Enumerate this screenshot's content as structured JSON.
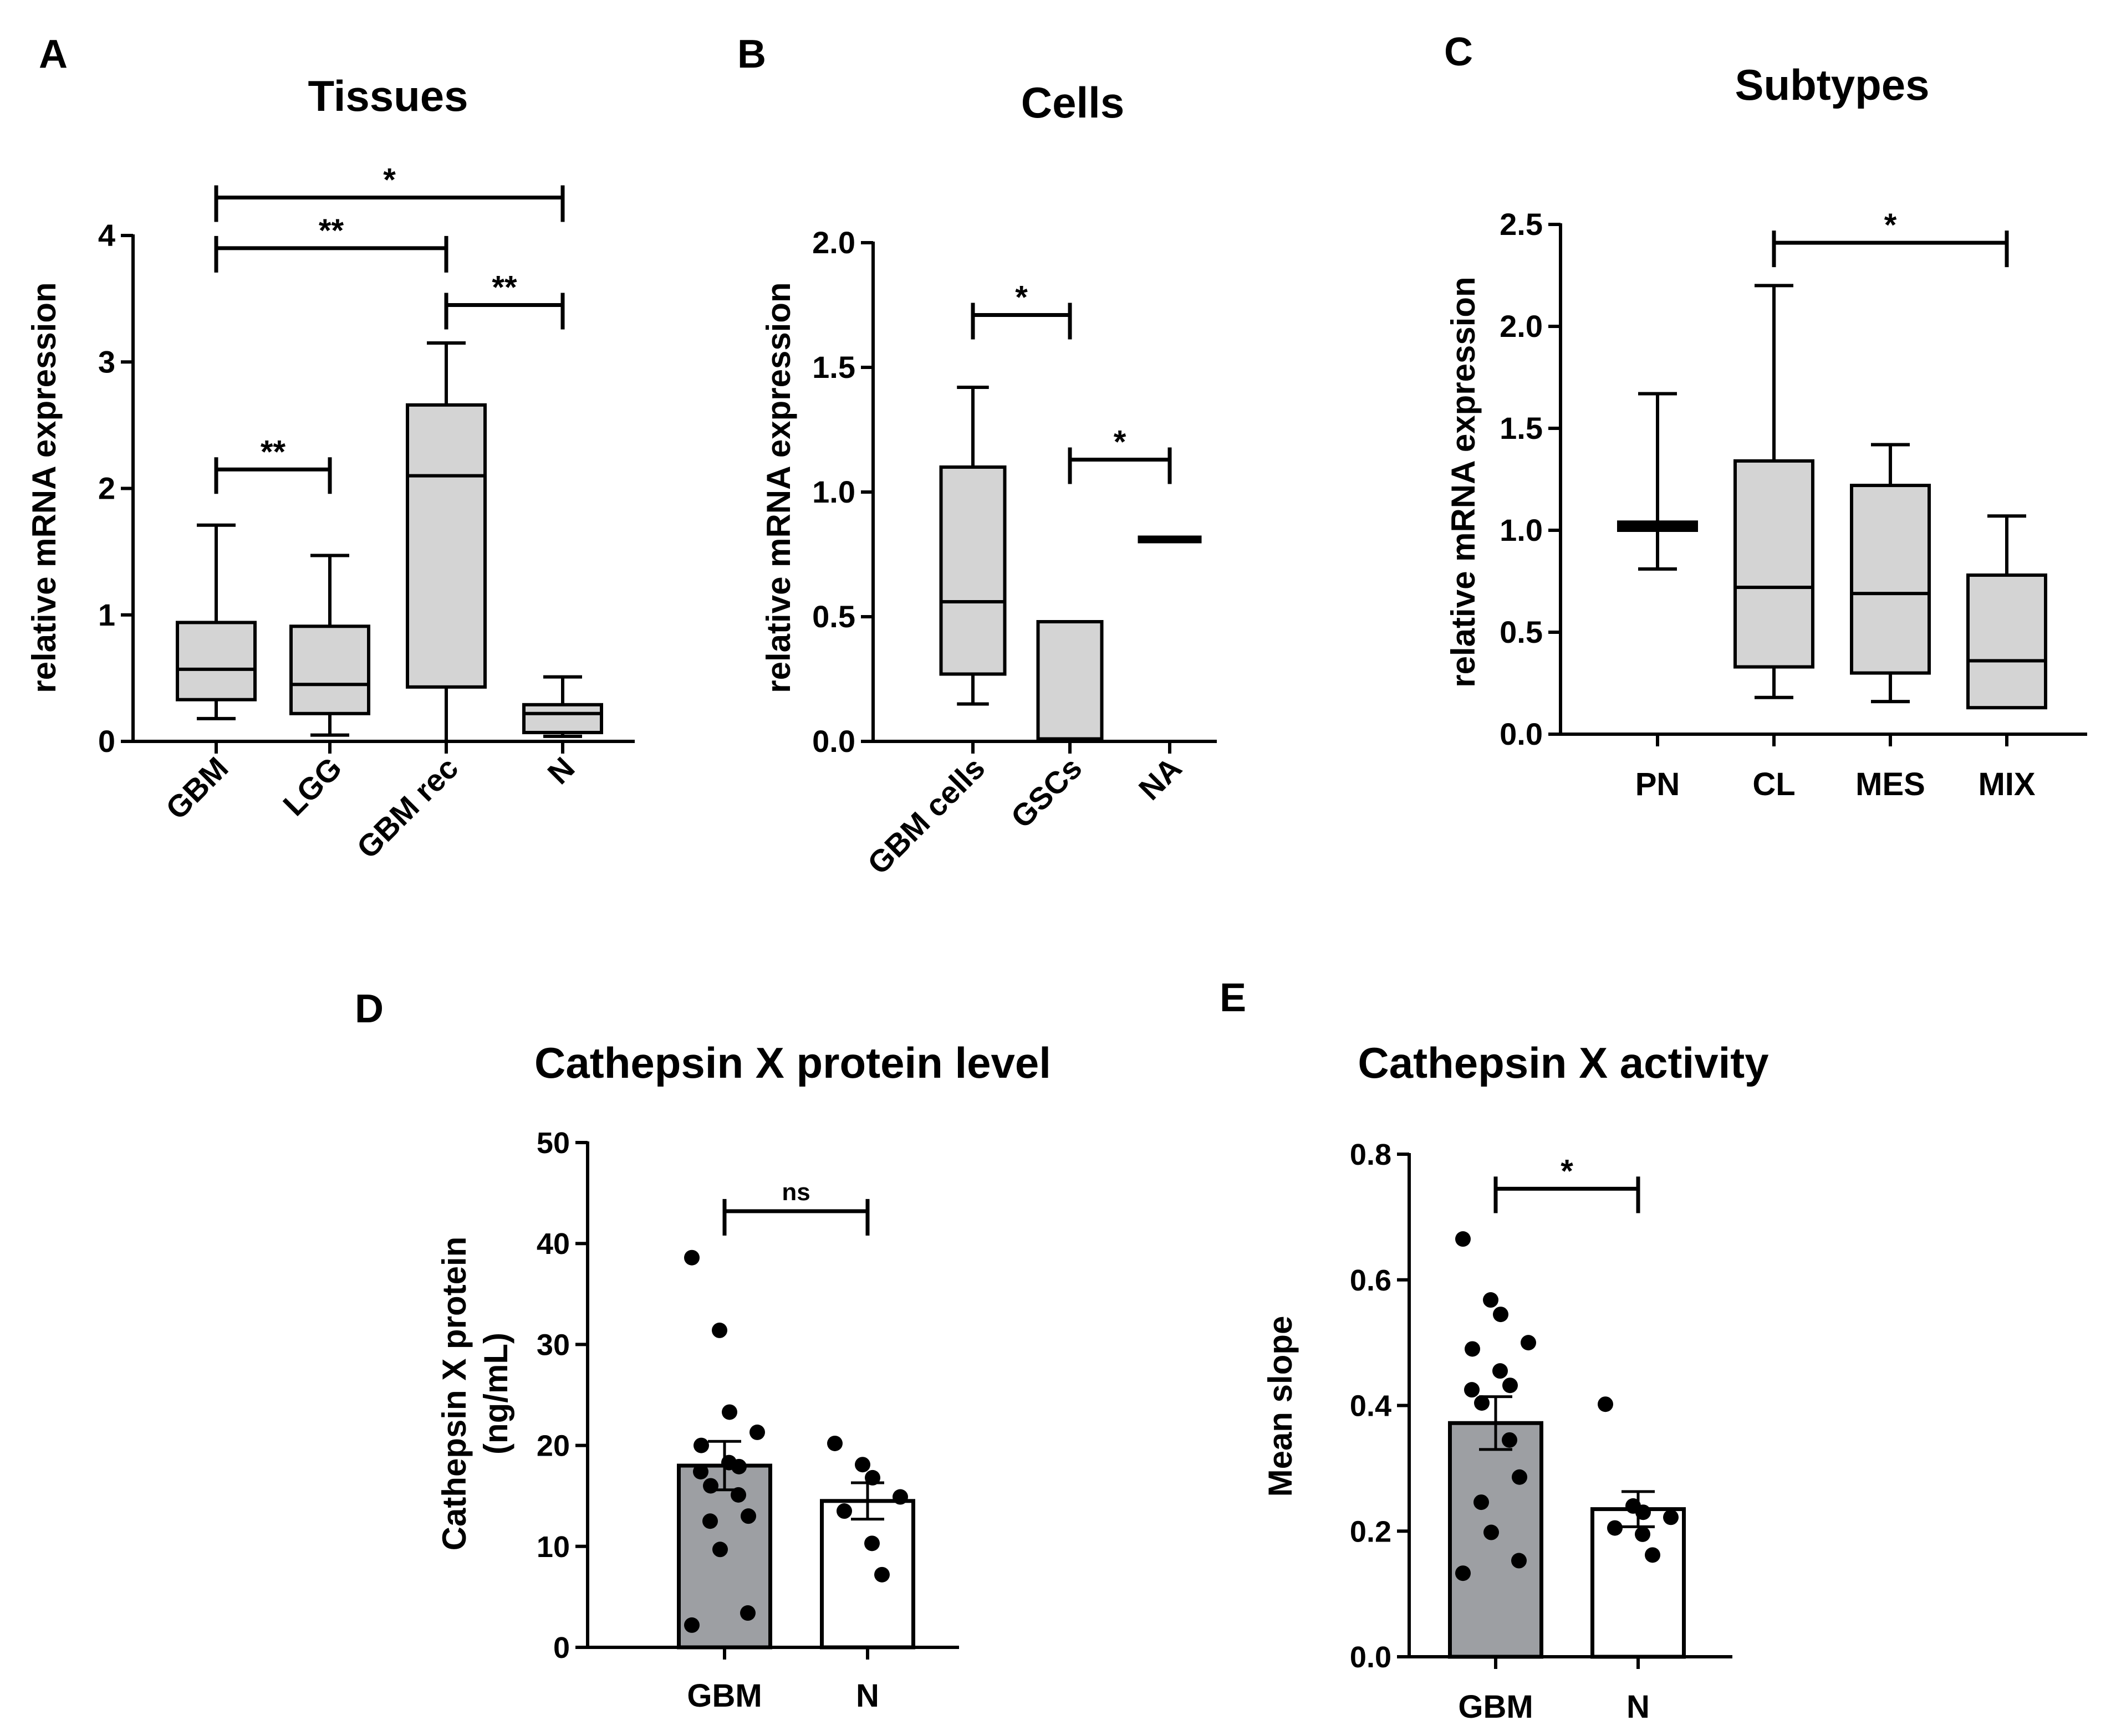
{
  "chart_data": [
    {
      "panel": "A",
      "type": "box",
      "title": "Tissues",
      "ylabel": "relative mRNA expression",
      "ylim": [
        0,
        4
      ],
      "yticks": [
        "0",
        "1",
        "2",
        "3",
        "4"
      ],
      "categories": [
        "GBM",
        "LGG",
        "GBM rec",
        "N"
      ],
      "boxes": [
        {
          "min": 0.18,
          "q1": 0.33,
          "median": 0.57,
          "q3": 0.94,
          "max": 1.71
        },
        {
          "min": 0.05,
          "q1": 0.22,
          "median": 0.45,
          "q3": 0.91,
          "max": 1.47
        },
        {
          "min": 0.0,
          "q1": 0.43,
          "median": 2.1,
          "q3": 2.66,
          "max": 3.15
        },
        {
          "min": 0.04,
          "q1": 0.07,
          "median": 0.22,
          "q3": 0.29,
          "max": 0.51
        }
      ],
      "brackets": [
        {
          "from": 0,
          "to": 3,
          "y": 4.3,
          "label": "*"
        },
        {
          "from": 0,
          "to": 2,
          "y": 3.9,
          "label": "**"
        },
        {
          "from": 2,
          "to": 3,
          "y": 3.45,
          "label": "**"
        },
        {
          "from": 0,
          "to": 1,
          "y": 2.15,
          "label": "**"
        }
      ]
    },
    {
      "panel": "B",
      "type": "box",
      "title": "Cells",
      "ylabel": "relative mRNA expression",
      "ylim": [
        0,
        2.0
      ],
      "yticks": [
        "0.0",
        "0.5",
        "1.0",
        "1.5",
        "2.0"
      ],
      "categories": [
        "GBM cells",
        "GSCs",
        "NA"
      ],
      "boxes": [
        {
          "min": 0.15,
          "q1": 0.27,
          "median": 0.56,
          "q3": 1.1,
          "max": 1.42
        },
        {
          "min": 0.0,
          "q1": 0.01,
          "median": 0.01,
          "q3": 0.48,
          "max": 0.48
        },
        {
          "min": 0.81,
          "q1": 0.81,
          "median": 0.81,
          "q3": 0.81,
          "max": 0.81
        }
      ],
      "brackets": [
        {
          "from": 0,
          "to": 1,
          "y": 1.71,
          "label": "*"
        },
        {
          "from": 1,
          "to": 2,
          "y": 1.13,
          "label": "*"
        }
      ]
    },
    {
      "panel": "C",
      "type": "box",
      "title": "Subtypes",
      "ylabel": "relative mRNA expression",
      "ylim": [
        0,
        2.5
      ],
      "yticks": [
        "0.0",
        "0.5",
        "1.0",
        "1.5",
        "2.0",
        "2.5"
      ],
      "categories": [
        "PN",
        "CL",
        "MES",
        "MIX"
      ],
      "boxes": [
        {
          "min": 0.81,
          "q1": 1.0,
          "median": 1.02,
          "q3": 1.04,
          "max": 1.67
        },
        {
          "min": 0.18,
          "q1": 0.33,
          "median": 0.72,
          "q3": 1.34,
          "max": 2.2
        },
        {
          "min": 0.16,
          "q1": 0.3,
          "median": 0.69,
          "q3": 1.22,
          "max": 1.42
        },
        {
          "min": 0.13,
          "q1": 0.13,
          "median": 0.36,
          "q3": 0.78,
          "max": 1.07
        }
      ],
      "brackets": [
        {
          "from": 1,
          "to": 3,
          "y": 2.41,
          "label": "*"
        }
      ]
    },
    {
      "panel": "D",
      "type": "bar",
      "title": "Cathepsin X protein level",
      "ylabel": "Cathepsin X protein\n(ng/mL)",
      "ylim": [
        0,
        50
      ],
      "yticks": [
        "0",
        "10",
        "20",
        "30",
        "40",
        "50"
      ],
      "categories": [
        "GBM",
        "N"
      ],
      "values": [
        18.0,
        14.5
      ],
      "sem": [
        2.4,
        1.8
      ],
      "fills": [
        "#9d9fa3",
        "#ffffff"
      ],
      "points": [
        [
          38.6,
          31.4,
          23.3,
          21.3,
          20.0,
          18.3,
          17.9,
          17.4,
          16.0,
          15.1,
          13.0,
          12.5,
          9.7,
          3.4,
          2.2
        ],
        [
          20.2,
          18.1,
          16.8,
          14.9,
          13.5,
          10.3,
          7.2
        ]
      ],
      "brackets": [
        {
          "from": 0,
          "to": 1,
          "y": 43.2,
          "label": "ns"
        }
      ]
    },
    {
      "panel": "E",
      "type": "bar",
      "title": "Cathepsin X activity",
      "ylabel": "Mean slope",
      "ylim": [
        0,
        0.8
      ],
      "yticks": [
        "0.0",
        "0.2",
        "0.4",
        "0.6",
        "0.8"
      ],
      "categories": [
        "GBM",
        "N"
      ],
      "values": [
        0.372,
        0.235
      ],
      "sem": [
        0.042,
        0.028
      ],
      "fills": [
        "#9d9fa3",
        "#ffffff"
      ],
      "points": [
        [
          0.665,
          0.568,
          0.545,
          0.5,
          0.49,
          0.455,
          0.432,
          0.425,
          0.404,
          0.345,
          0.286,
          0.246,
          0.198,
          0.153,
          0.133
        ],
        [
          0.402,
          0.24,
          0.23,
          0.222,
          0.205,
          0.195,
          0.162
        ]
      ],
      "brackets": [
        {
          "from": 0,
          "to": 1,
          "y": 0.745,
          "label": "*"
        }
      ]
    }
  ],
  "panels": {
    "A": {
      "letter": "A"
    },
    "B": {
      "letter": "B"
    },
    "C": {
      "letter": "C"
    },
    "D": {
      "letter": "D"
    },
    "E": {
      "letter": "E"
    }
  },
  "colors": {
    "box_fill": "#d4d4d4",
    "bar_gbm": "#9d9fa3",
    "bar_n": "#ffffff",
    "ink": "#000000"
  }
}
